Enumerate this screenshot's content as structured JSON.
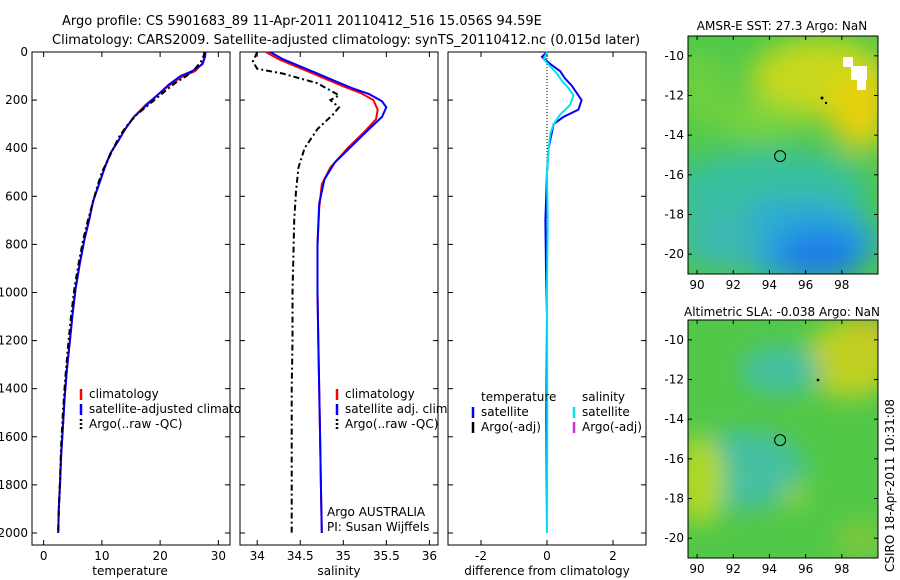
{
  "title": {
    "line1": "Argo profile: CS 5901683_89 11-Apr-2011 20110412_516 15.056S 94.59E",
    "line2": "Climatology: CARS2009. Satellite-adjusted climatology: synTS_20110412.nc (0.015d later)"
  },
  "side_label": "CSIRO 18-Apr-2011 10:31:08",
  "colors": {
    "climatology": "#ff0000",
    "satellite": "#0000ff",
    "argo": "#000000",
    "sal_satellite": "#00e5ee",
    "sal_argo": "#cc33cc"
  },
  "chart_data": [
    {
      "id": "temperature",
      "type": "line",
      "xlabel": "temperature",
      "ylabel": "",
      "xlim": [
        -2,
        32
      ],
      "ylim": [
        2050,
        0
      ],
      "xticks": [
        0,
        10,
        20,
        30
      ],
      "yticks": [
        0,
        200,
        400,
        600,
        800,
        1000,
        1200,
        1400,
        1600,
        1800,
        2000
      ],
      "grid": false,
      "legend": "lower-right",
      "legend_entries": [
        "climatology",
        "satellite-adjusted climatology",
        "Argo(..raw -QC)"
      ],
      "series": [
        {
          "name": "climatology",
          "color": "#ff0000",
          "dash": "",
          "x": [
            27.8,
            27.7,
            27.2,
            26,
            24,
            22,
            20,
            17.5,
            15.5,
            14,
            12.8,
            11.5,
            10.5,
            9.5,
            8.5,
            7.8,
            7,
            6.2,
            5.5,
            5,
            4.5,
            4,
            3.6,
            3.3,
            3,
            2.8,
            2.6,
            2.5
          ],
          "y": [
            0,
            20,
            50,
            80,
            100,
            130,
            170,
            220,
            270,
            320,
            370,
            420,
            480,
            550,
            620,
            700,
            780,
            880,
            980,
            1080,
            1200,
            1320,
            1440,
            1560,
            1680,
            1800,
            1900,
            2000
          ]
        },
        {
          "name": "satellite-adjusted climatology",
          "color": "#0000ff",
          "dash": "",
          "x": [
            27.8,
            27.7,
            27.3,
            25.5,
            23.5,
            21.5,
            19.5,
            17.5,
            15.5,
            14,
            12.8,
            11.5,
            10.5,
            9.5,
            8.5,
            7.8,
            7,
            6.2,
            5.5,
            5,
            4.5,
            4,
            3.6,
            3.3,
            3,
            2.8,
            2.6,
            2.5
          ],
          "y": [
            0,
            20,
            50,
            80,
            100,
            135,
            180,
            225,
            270,
            320,
            370,
            420,
            480,
            550,
            620,
            700,
            780,
            880,
            980,
            1080,
            1200,
            1320,
            1440,
            1560,
            1680,
            1800,
            1900,
            2000
          ]
        },
        {
          "name": "Argo(..raw -QC)",
          "color": "#000000",
          "dash": "6,3,2,3",
          "x": [
            27.6,
            27.5,
            27,
            26,
            24.5,
            22.5,
            21,
            19.5,
            18,
            16,
            14.5,
            13,
            12,
            11,
            10,
            9.2,
            8.4,
            7.6,
            6.8,
            6,
            5.3,
            4.7,
            4.2,
            3.7,
            3.3,
            3,
            2.8,
            2.6,
            2.5
          ],
          "y": [
            0,
            15,
            40,
            70,
            100,
            130,
            160,
            190,
            220,
            260,
            300,
            350,
            400,
            450,
            500,
            560,
            630,
            700,
            780,
            880,
            980,
            1100,
            1220,
            1360,
            1500,
            1640,
            1780,
            1900,
            2000
          ]
        }
      ]
    },
    {
      "id": "salinity",
      "type": "line",
      "xlabel": "salinity",
      "ylabel": "",
      "xlim": [
        33.8,
        36.1
      ],
      "ylim": [
        2050,
        0
      ],
      "xticks": [
        34,
        34.5,
        35,
        35.5,
        36
      ],
      "grid": false,
      "legend": "lower-right",
      "legend_entries": [
        "climatology",
        "satellite adj. clim.",
        "Argo(..raw -QC)"
      ],
      "annotation": [
        "Argo AUSTRALIA",
        "PI: Susan Wijffels"
      ],
      "series": [
        {
          "name": "climatology",
          "color": "#ff0000",
          "dash": "",
          "x": [
            34.1,
            34.25,
            34.45,
            34.65,
            34.85,
            35.05,
            35.2,
            35.35,
            35.4,
            35.38,
            35.25,
            35.05,
            34.85,
            34.75,
            34.72,
            34.7,
            34.7,
            34.71,
            34.72,
            34.73,
            34.74,
            34.75
          ],
          "y": [
            0,
            30,
            60,
            90,
            120,
            150,
            170,
            200,
            240,
            280,
            330,
            400,
            480,
            550,
            650,
            800,
            1000,
            1200,
            1400,
            1600,
            1800,
            2000
          ]
        },
        {
          "name": "satellite adj. clim.",
          "color": "#0000ff",
          "dash": "",
          "x": [
            34.15,
            34.3,
            34.5,
            34.7,
            34.9,
            35.1,
            35.3,
            35.45,
            35.5,
            35.45,
            35.3,
            35.1,
            34.9,
            34.78,
            34.72,
            34.7,
            34.7,
            34.71,
            34.72,
            34.73,
            34.74,
            34.75
          ],
          "y": [
            0,
            30,
            60,
            90,
            120,
            150,
            175,
            205,
            230,
            270,
            320,
            390,
            460,
            530,
            630,
            800,
            1000,
            1200,
            1400,
            1600,
            1800,
            2000
          ]
        },
        {
          "name": "Argo(..raw -QC)",
          "color": "#000000",
          "dash": "6,3,2,3",
          "x": [
            34.0,
            33.95,
            34.0,
            34.3,
            34.5,
            34.7,
            34.85,
            34.95,
            34.85,
            34.95,
            34.88,
            34.7,
            34.55,
            34.48,
            34.45,
            34.43,
            34.42,
            34.41,
            34.41,
            34.4,
            34.4,
            34.4,
            34.4
          ],
          "y": [
            0,
            40,
            70,
            90,
            110,
            130,
            160,
            180,
            200,
            230,
            260,
            320,
            400,
            480,
            580,
            700,
            850,
            1000,
            1200,
            1400,
            1600,
            1800,
            2000
          ]
        }
      ]
    },
    {
      "id": "difference",
      "type": "line",
      "xlabel": "difference from climatology",
      "ylabel": "",
      "xlim": [
        -3,
        3
      ],
      "ylim": [
        2050,
        0
      ],
      "xticks": [
        -2,
        0,
        2
      ],
      "grid": false,
      "legend": "lower-right",
      "legend_headers": [
        "temperature",
        "salinity"
      ],
      "legend_entries": [
        "satellite",
        "Argo(-adj)",
        "satellite",
        "Argo(-adj)"
      ],
      "series": [
        {
          "name": "satellite",
          "group": "temperature",
          "color": "#0000ff",
          "dash": "",
          "x": [
            0,
            -0.15,
            0.1,
            0.4,
            0.55,
            0.75,
            0.9,
            1.05,
            0.95,
            0.5,
            0.2,
            0.05,
            0,
            -0.05,
            -0.03,
            0,
            -0.02,
            0
          ],
          "y": [
            0,
            20,
            50,
            80,
            110,
            140,
            170,
            200,
            240,
            270,
            300,
            400,
            500,
            700,
            900,
            1100,
            1500,
            2000
          ]
        },
        {
          "name": "Argo(-adj)",
          "group": "temperature",
          "color": "#000000",
          "dash": "1,2",
          "x": [
            0,
            0,
            0
          ],
          "y": [
            0,
            1000,
            2000
          ]
        },
        {
          "name": "satellite",
          "group": "salinity",
          "color": "#00e5ee",
          "dash": "",
          "x": [
            0,
            -0.1,
            0.1,
            0.3,
            0.45,
            0.65,
            0.8,
            0.7,
            0.4,
            0.2,
            0.1,
            0.05,
            0,
            0.02,
            0,
            0.01,
            0
          ],
          "y": [
            0,
            30,
            60,
            90,
            120,
            150,
            180,
            220,
            260,
            300,
            340,
            400,
            500,
            700,
            1000,
            1500,
            2000
          ]
        },
        {
          "name": "Argo(-adj)",
          "group": "salinity",
          "color": "#cc33cc",
          "dash": "",
          "x": [],
          "y": []
        }
      ]
    },
    {
      "id": "sst_map",
      "type": "heatmap",
      "title": "AMSR-E SST: 27.3 Argo: NaN",
      "xlim": [
        89.5,
        100
      ],
      "ylim": [
        -21,
        -9
      ],
      "xticks": [
        90,
        92,
        94,
        96,
        98
      ],
      "xtick_labels": [
        "90",
        "92",
        "94",
        "96",
        "98"
      ],
      "yticks": [
        -10,
        -12,
        -14,
        -16,
        -18,
        -20
      ],
      "marker": {
        "lon": 94.59,
        "lat": -15.056,
        "shape": "circle"
      }
    },
    {
      "id": "sla_map",
      "type": "heatmap",
      "title": "Altimetric SLA: -0.038 Argo: NaN",
      "xlim": [
        89.5,
        100
      ],
      "ylim": [
        -21,
        -9
      ],
      "xticks": [
        90,
        92,
        94,
        96,
        98
      ],
      "xtick_labels": [
        "90",
        "92",
        "94",
        "96",
        "98"
      ],
      "yticks": [
        -10,
        -12,
        -14,
        -16,
        -18,
        -20
      ],
      "marker": {
        "lon": 94.59,
        "lat": -15.056,
        "shape": "circle"
      }
    }
  ]
}
